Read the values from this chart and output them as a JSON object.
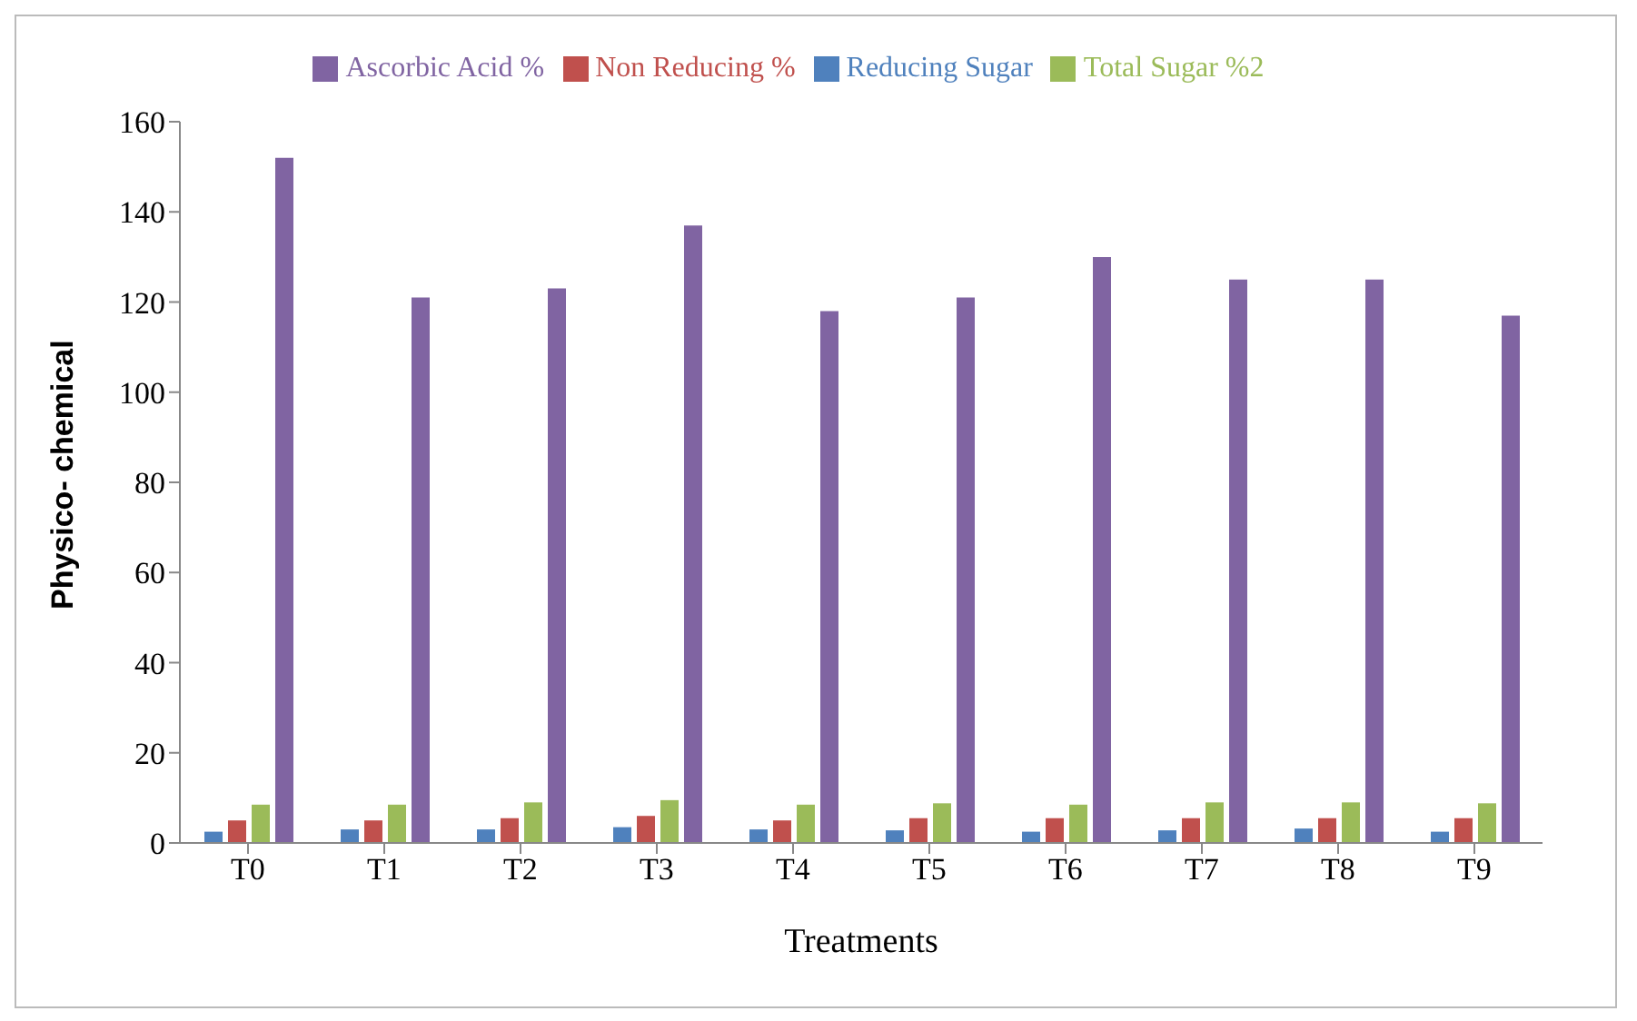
{
  "chart_data": {
    "type": "bar",
    "xlabel": "Treatments",
    "ylabel": "Physico- chemical",
    "categories": [
      "T0",
      "T1",
      "T2",
      "T3",
      "T4",
      "T5",
      "T6",
      "T7",
      "T8",
      "T9"
    ],
    "series": [
      {
        "name": "Reducing Sugar",
        "color": "#4f81bd",
        "values": [
          2.5,
          3,
          3,
          3.5,
          3,
          2.8,
          2.5,
          2.8,
          3.2,
          2.5
        ]
      },
      {
        "name": "Non Reducing %",
        "color": "#c0504d",
        "values": [
          5,
          5,
          5.5,
          6,
          5,
          5.5,
          5.5,
          5.5,
          5.5,
          5.5
        ]
      },
      {
        "name": "Total Sugar %2",
        "color": "#9bbb59",
        "values": [
          8.5,
          8.5,
          9,
          9.5,
          8.5,
          8.8,
          8.5,
          9,
          9,
          8.8
        ]
      },
      {
        "name": "Ascorbic Acid %",
        "color": "#8064a2",
        "values": [
          152,
          121,
          123,
          137,
          118,
          121,
          130,
          125,
          125,
          117
        ]
      }
    ],
    "ylim": [
      0,
      160
    ],
    "yticks": [
      0,
      20,
      40,
      60,
      80,
      100,
      120,
      140,
      160
    ],
    "legend": "top",
    "grid": false
  }
}
